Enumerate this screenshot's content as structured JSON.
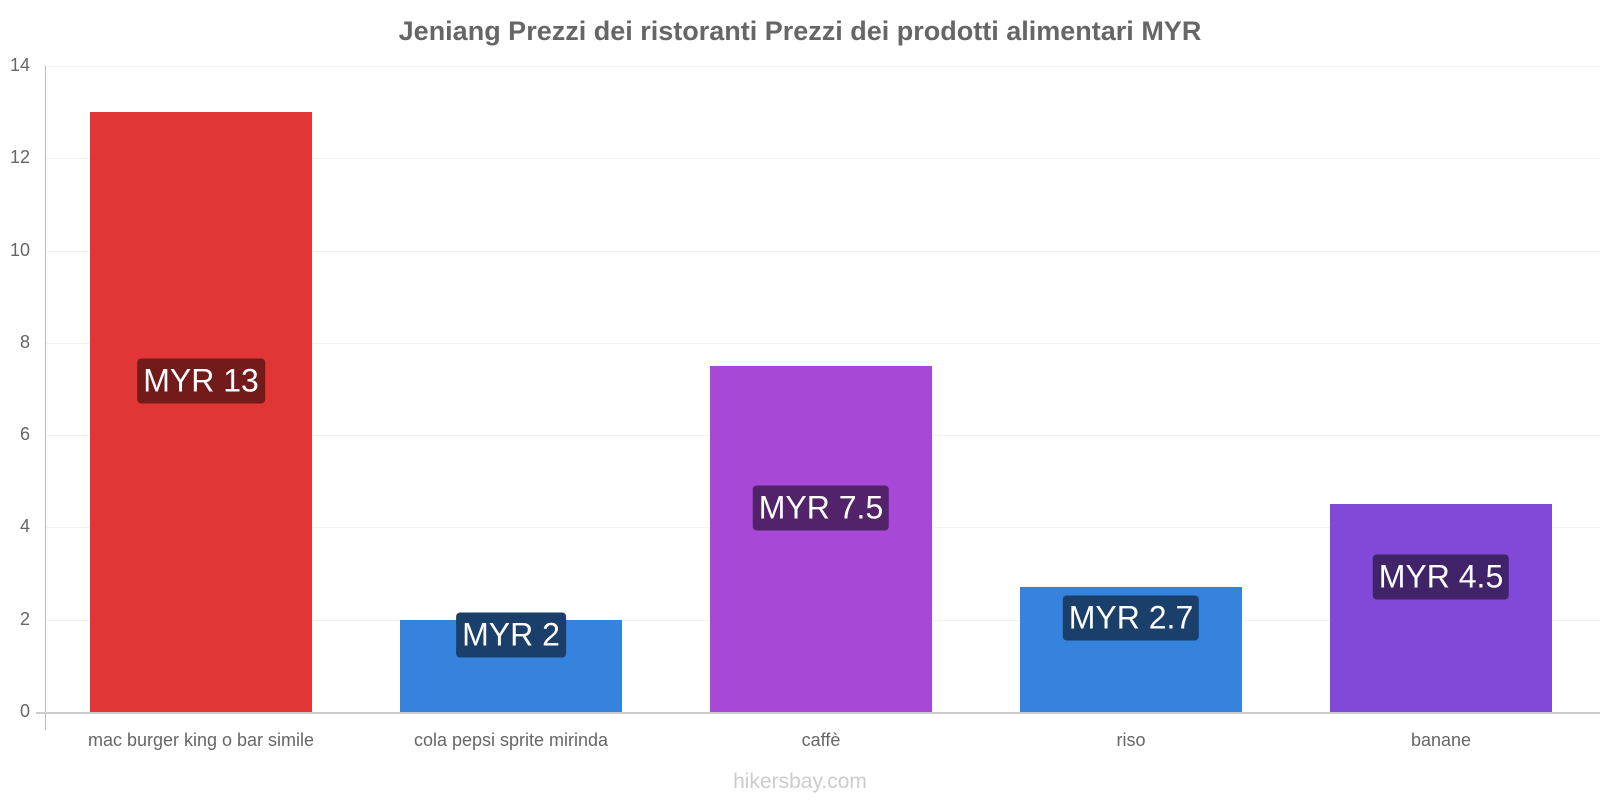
{
  "chart_data": {
    "type": "bar",
    "title": "Jeniang Prezzi dei ristoranti Prezzi dei prodotti alimentari MYR",
    "xlabel": "",
    "ylabel": "",
    "ylim": [
      0,
      14
    ],
    "yticks": [
      "0",
      "2",
      "4",
      "6",
      "8",
      "10",
      "12",
      "14"
    ],
    "categories": [
      "mac burger king o bar simile",
      "cola pepsi sprite mirinda",
      "caffè",
      "riso",
      "banane"
    ],
    "values": [
      13,
      2,
      7.5,
      2.7,
      4.5
    ],
    "data_labels": [
      "MYR 13",
      "MYR 2",
      "MYR 7.5",
      "MYR 2.7",
      "MYR 4.5"
    ],
    "bar_colors": [
      "#e13636",
      "#3583dc",
      "#a748d6",
      "#3583dc",
      "#8049d8"
    ],
    "label_colors": [
      "#731a1a",
      "#1b3f6b",
      "#52226b",
      "#1b3f6b",
      "#412369"
    ],
    "grid": true,
    "legend": null
  },
  "watermark": "hikersbay.com"
}
